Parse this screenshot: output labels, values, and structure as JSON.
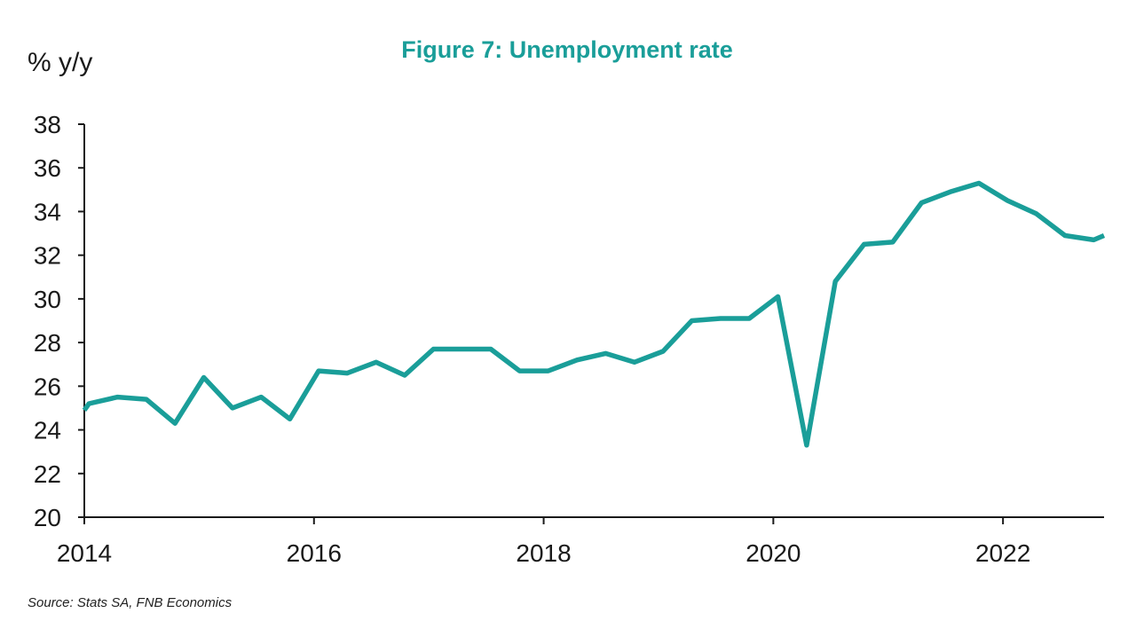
{
  "chart_data": {
    "type": "line",
    "title": "Figure 7: Unemployment rate",
    "ylabel": "% y/y",
    "source": "Source: Stats SA, FNB Economics",
    "xlim": [
      2014,
      2022.88
    ],
    "ylim": [
      20,
      38
    ],
    "x_ticks": [
      2014,
      2016,
      2018,
      2020,
      2022
    ],
    "y_ticks": [
      20,
      22,
      24,
      26,
      28,
      30,
      32,
      34,
      36,
      38
    ],
    "grid": false,
    "series": [
      {
        "color": "#1a9e99",
        "x": [
          2014.0,
          2014.04,
          2014.29,
          2014.54,
          2014.79,
          2015.04,
          2015.29,
          2015.54,
          2015.79,
          2016.04,
          2016.29,
          2016.54,
          2016.79,
          2017.04,
          2017.29,
          2017.54,
          2017.79,
          2018.04,
          2018.29,
          2018.54,
          2018.79,
          2019.04,
          2019.29,
          2019.54,
          2019.79,
          2020.04,
          2020.29,
          2020.54,
          2020.79,
          2021.04,
          2021.29,
          2021.54,
          2021.79,
          2022.04,
          2022.29,
          2022.54,
          2022.79,
          2022.88
        ],
        "y": [
          24.9,
          25.2,
          25.5,
          25.4,
          24.3,
          26.4,
          25.0,
          25.5,
          24.5,
          26.7,
          26.6,
          27.1,
          26.5,
          27.7,
          27.7,
          27.7,
          26.7,
          26.7,
          27.2,
          27.5,
          27.1,
          27.6,
          29.0,
          29.1,
          29.1,
          30.1,
          23.3,
          30.8,
          32.5,
          32.6,
          34.4,
          34.9,
          35.3,
          34.5,
          33.9,
          32.9,
          32.7,
          32.9
        ]
      }
    ]
  },
  "colors": {
    "title": "#1a9e99",
    "axis": "#1a1a1a"
  }
}
